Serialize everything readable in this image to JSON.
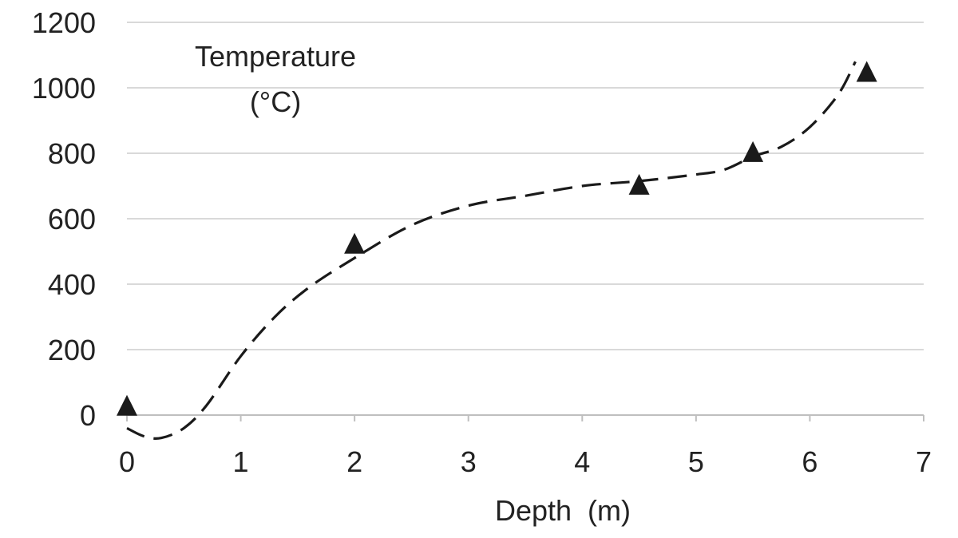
{
  "chart_data": {
    "type": "scatter",
    "ylabel_lines": [
      "Temperature",
      "(°C)"
    ],
    "xlabel": "Depth  (m)",
    "xlim": [
      0,
      7
    ],
    "ylim": [
      0,
      1200
    ],
    "x_ticks": [
      0,
      1,
      2,
      3,
      4,
      5,
      6,
      7
    ],
    "y_ticks": [
      0,
      200,
      400,
      600,
      800,
      1000,
      1200
    ],
    "grid": {
      "horizontal": true,
      "vertical": false
    },
    "series": [
      {
        "marker": "triangle",
        "x": [
          0,
          2,
          4.5,
          5.5,
          6.5
        ],
        "y": [
          25,
          520,
          700,
          800,
          1045
        ]
      }
    ],
    "trend_curve": {
      "style": "dashed",
      "x": [
        0,
        0.15,
        0.3,
        0.5,
        0.7,
        1.0,
        1.3,
        1.6,
        2.0,
        2.5,
        3.0,
        3.5,
        4.0,
        4.5,
        5.0,
        5.25,
        5.5,
        5.75,
        6.0,
        6.25,
        6.4
      ],
      "y": [
        -40,
        -65,
        -70,
        -40,
        30,
        180,
        300,
        390,
        480,
        580,
        640,
        670,
        700,
        715,
        735,
        750,
        790,
        820,
        880,
        980,
        1080
      ]
    },
    "colors": {
      "marker": "#1a1a1a",
      "curve": "#1a1a1a",
      "grid": "#d9d9d9",
      "axis": "#bfbfbf",
      "text": "#222222"
    }
  }
}
